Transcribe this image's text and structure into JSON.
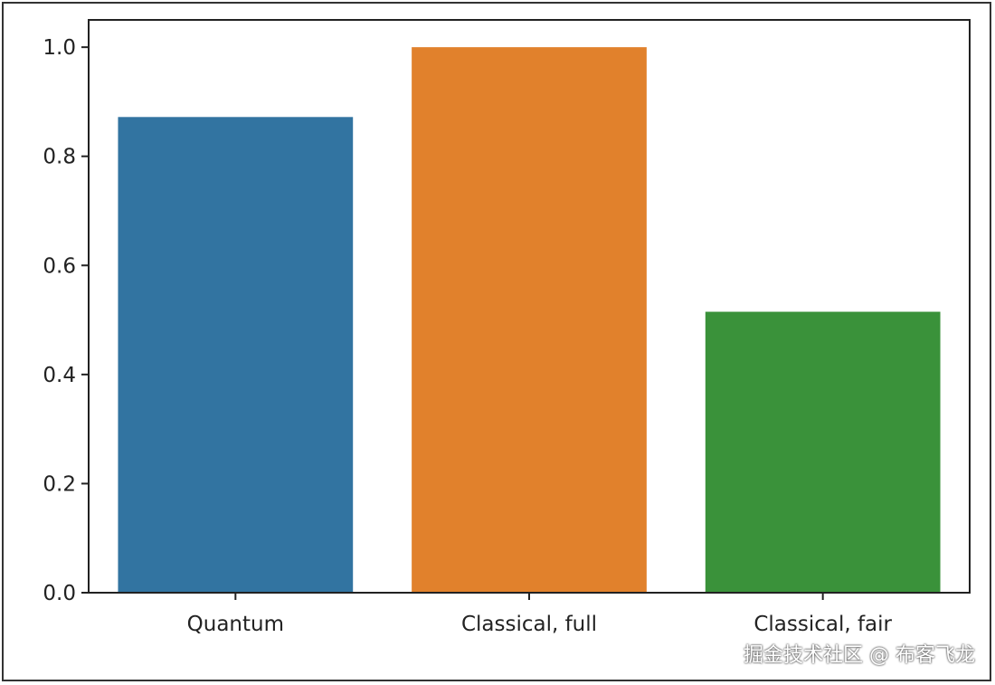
{
  "chart_data": {
    "type": "bar",
    "title": "",
    "xlabel": "",
    "ylabel": "",
    "categories": [
      "Quantum",
      "Classical, full",
      "Classical, fair"
    ],
    "values": [
      0.872,
      1.0,
      0.515
    ],
    "colors": [
      "#3274a1",
      "#e1812c",
      "#3a923a"
    ],
    "ylim": [
      0,
      1.05
    ],
    "yticks": [
      0.0,
      0.2,
      0.4,
      0.6,
      0.8,
      1.0
    ],
    "ytick_labels": [
      "0.0",
      "0.2",
      "0.4",
      "0.6",
      "0.8",
      "1.0"
    ],
    "grid": false,
    "legend": "none"
  },
  "watermark": "掘金技术社区 @ 布客飞龙"
}
